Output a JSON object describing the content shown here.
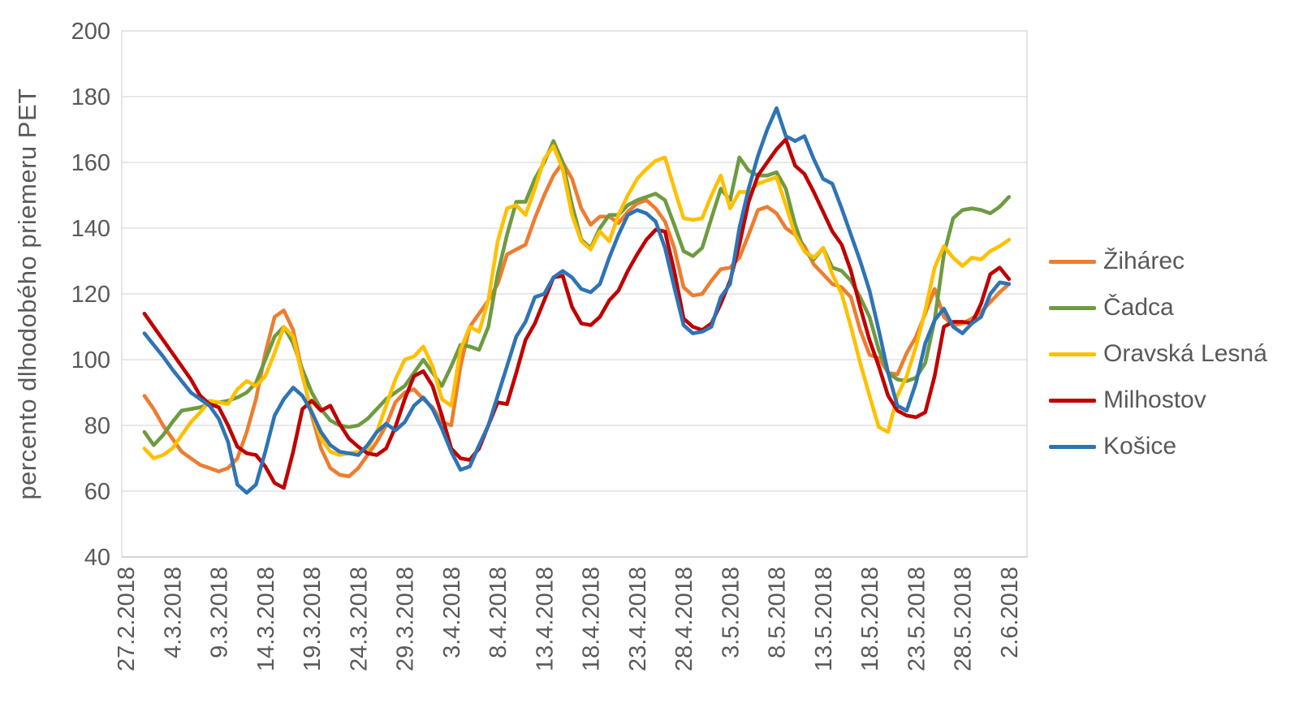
{
  "chart_data": {
    "type": "line",
    "title": "",
    "ylabel": "percento dlhodobého priemeru PET",
    "xlabel": "",
    "ylim": [
      40,
      200
    ],
    "y_ticks": [
      40,
      60,
      80,
      100,
      120,
      140,
      160,
      180,
      200
    ],
    "grid": "horizontal",
    "legend_position": "right",
    "x_tick_labels": [
      "27.2.2018",
      "4.3.2018",
      "9.3.2018",
      "14.3.2018",
      "19.3.2018",
      "24.3.2018",
      "29.3.2018",
      "3.4.2018",
      "8.4.2018",
      "13.4.2018",
      "18.4.2018",
      "23.4.2018",
      "28.4.2018",
      "3.5.2018",
      "8.5.2018",
      "13.5.2018",
      "18.5.2018",
      "23.5.2018",
      "28.5.2018",
      "2.6.2018"
    ],
    "x_tick_day_offsets": [
      0,
      5,
      10,
      15,
      20,
      25,
      30,
      35,
      40,
      45,
      50,
      55,
      60,
      65,
      70,
      75,
      80,
      85,
      90,
      95
    ],
    "x_axis_total_days": 95,
    "first_data_day_offset": 2,
    "x_dates": [
      "1.3.2018",
      "2.3.2018",
      "3.3.2018",
      "4.3.2018",
      "5.3.2018",
      "6.3.2018",
      "7.3.2018",
      "8.3.2018",
      "9.3.2018",
      "10.3.2018",
      "11.3.2018",
      "12.3.2018",
      "13.3.2018",
      "14.3.2018",
      "15.3.2018",
      "16.3.2018",
      "17.3.2018",
      "18.3.2018",
      "19.3.2018",
      "20.3.2018",
      "21.3.2018",
      "22.3.2018",
      "23.3.2018",
      "24.3.2018",
      "25.3.2018",
      "26.3.2018",
      "27.3.2018",
      "28.3.2018",
      "29.3.2018",
      "30.3.2018",
      "31.3.2018",
      "1.4.2018",
      "2.4.2018",
      "3.4.2018",
      "4.4.2018",
      "5.4.2018",
      "6.4.2018",
      "7.4.2018",
      "8.4.2018",
      "9.4.2018",
      "10.4.2018",
      "11.4.2018",
      "12.4.2018",
      "13.4.2018",
      "14.4.2018",
      "15.4.2018",
      "16.4.2018",
      "17.4.2018",
      "18.4.2018",
      "19.4.2018",
      "20.4.2018",
      "21.4.2018",
      "22.4.2018",
      "23.4.2018",
      "24.4.2018",
      "25.4.2018",
      "26.4.2018",
      "27.4.2018",
      "28.4.2018",
      "29.4.2018",
      "30.4.2018",
      "1.5.2018",
      "2.5.2018",
      "3.5.2018",
      "4.5.2018",
      "5.5.2018",
      "6.5.2018",
      "7.5.2018",
      "8.5.2018",
      "9.5.2018",
      "10.5.2018",
      "11.5.2018",
      "12.5.2018",
      "13.5.2018",
      "14.5.2018",
      "15.5.2018",
      "16.5.2018",
      "17.5.2018",
      "18.5.2018",
      "19.5.2018",
      "20.5.2018",
      "21.5.2018",
      "22.5.2018",
      "23.5.2018",
      "24.5.2018",
      "25.5.2018",
      "26.5.2018",
      "27.5.2018",
      "28.5.2018",
      "29.5.2018",
      "30.5.2018",
      "31.5.2018",
      "1.6.2018",
      "2.6.2018"
    ],
    "series": [
      {
        "name": "Žihárec",
        "color": "#ED7D31",
        "values": [
          89,
          85,
          80,
          76,
          72,
          70,
          68,
          67,
          66,
          67,
          70,
          78,
          88,
          102,
          113,
          115,
          109,
          96,
          83,
          73,
          67,
          65,
          64.5,
          67,
          71,
          75,
          80,
          87,
          90,
          91,
          88,
          85.5,
          81,
          80,
          98,
          110,
          114,
          118,
          123,
          132,
          133.5,
          135,
          143,
          150,
          156,
          160,
          155,
          146,
          141,
          143.5,
          143.5,
          141.5,
          145,
          147.5,
          148.5,
          146,
          142,
          134,
          122,
          119.5,
          120,
          124,
          127.5,
          128,
          131,
          138,
          145.5,
          146.5,
          144.5,
          140,
          138,
          134.5,
          129,
          126,
          123,
          122,
          119,
          109,
          101.5,
          100.5,
          96,
          95.5,
          102,
          107,
          114,
          121.5,
          113,
          110.5,
          111,
          112.5,
          114.5,
          117.5,
          120.5,
          123
        ]
      },
      {
        "name": "Čadca",
        "color": "#6E9B41",
        "values": [
          78,
          74,
          77,
          81,
          84.5,
          85,
          85.5,
          86.5,
          87,
          87.5,
          88.5,
          90,
          93,
          100,
          107,
          110,
          105,
          97,
          90,
          85,
          81.5,
          80,
          79.5,
          80,
          82,
          85,
          88,
          90,
          92,
          96,
          100,
          96,
          92,
          98,
          104.5,
          104,
          103,
          110,
          126,
          138,
          148,
          148,
          155,
          160,
          166.5,
          160,
          147,
          136.5,
          134,
          140,
          144,
          144,
          147,
          148.5,
          149.5,
          150.5,
          148.5,
          141,
          133,
          131.5,
          134,
          143,
          152,
          148.5,
          161.5,
          157.5,
          156,
          156,
          157,
          152,
          141,
          133,
          130.5,
          134,
          128,
          127,
          124,
          119,
          113,
          103,
          96,
          94,
          93.5,
          94.5,
          99,
          112,
          132,
          143,
          145.5,
          146,
          145.5,
          144.5,
          146.5,
          149.5
        ]
      },
      {
        "name": "Oravská Lesná",
        "color": "#FFC000",
        "values": [
          73,
          70,
          71,
          73,
          77,
          81,
          84,
          87.5,
          87,
          86.5,
          91,
          93.5,
          92,
          95,
          102,
          110,
          107,
          95,
          84,
          76,
          72,
          71,
          71.5,
          72,
          73,
          78,
          86,
          94,
          100,
          101,
          104,
          98,
          88,
          86,
          103,
          110,
          108.5,
          118,
          136,
          146,
          147,
          144,
          152,
          161,
          165,
          158,
          144,
          136,
          133.5,
          139,
          136,
          144,
          150,
          155,
          158,
          160.5,
          161.5,
          152,
          143,
          142.5,
          143,
          150,
          156,
          146,
          151,
          151,
          153.5,
          154.5,
          155.5,
          147,
          138,
          133,
          131,
          134,
          126,
          120,
          110,
          99,
          89,
          79.5,
          78,
          89,
          95,
          104,
          115,
          128,
          134.5,
          131,
          128.5,
          131,
          130.5,
          133,
          134.5,
          136.5
        ]
      },
      {
        "name": "Milhostov",
        "color": "#C00000",
        "values": [
          114,
          110,
          106,
          102,
          98,
          94,
          89,
          86.5,
          85.5,
          80,
          73.5,
          71.5,
          71,
          67.5,
          62.5,
          61,
          72,
          85,
          87.5,
          84.5,
          86,
          80.5,
          76,
          73.5,
          71.5,
          71,
          73,
          79.5,
          88,
          95,
          96.5,
          92,
          83,
          73,
          70,
          69.5,
          73,
          80,
          87,
          86.5,
          96,
          106,
          111,
          118,
          125,
          125.5,
          116,
          111,
          110.5,
          113,
          118,
          121,
          127,
          132,
          136.5,
          139.5,
          139,
          127,
          112.5,
          110,
          109,
          111,
          117,
          124,
          135,
          148,
          156,
          160,
          164,
          167,
          159,
          156.5,
          151,
          145,
          139,
          135,
          127,
          116,
          106,
          98,
          89,
          84.5,
          83,
          82.5,
          84,
          95,
          110,
          111.5,
          111.5,
          111,
          117,
          126,
          128,
          124.5
        ]
      },
      {
        "name": "Košice",
        "color": "#2E74B5",
        "values": [
          108,
          104.5,
          101,
          97,
          93.5,
          90,
          88,
          86,
          82,
          75,
          62,
          59.5,
          62,
          72,
          83,
          88,
          91.5,
          89,
          84,
          78,
          74,
          72,
          71.5,
          71,
          74,
          78,
          80.5,
          78.5,
          81,
          86,
          88.5,
          85,
          79,
          72,
          66.5,
          67.5,
          74,
          80,
          89,
          98,
          107,
          111.5,
          119,
          120,
          125,
          127,
          125,
          121.5,
          120.5,
          123,
          131,
          138,
          144,
          145.5,
          144.5,
          142,
          134,
          122,
          110.5,
          108,
          108.5,
          110,
          119,
          123,
          140,
          152,
          162,
          170,
          176.5,
          168,
          166.5,
          168,
          161,
          155,
          153.5,
          146,
          138,
          130,
          121,
          109,
          96,
          86,
          84.5,
          93,
          105,
          112,
          115.5,
          110,
          108,
          111,
          113,
          120,
          123.5,
          123
        ]
      }
    ],
    "colors": {
      "axis_text": "#595959",
      "gridline": "#D9D9D9",
      "axis_line": "#BFBFBF",
      "background": "#FFFFFF"
    }
  }
}
